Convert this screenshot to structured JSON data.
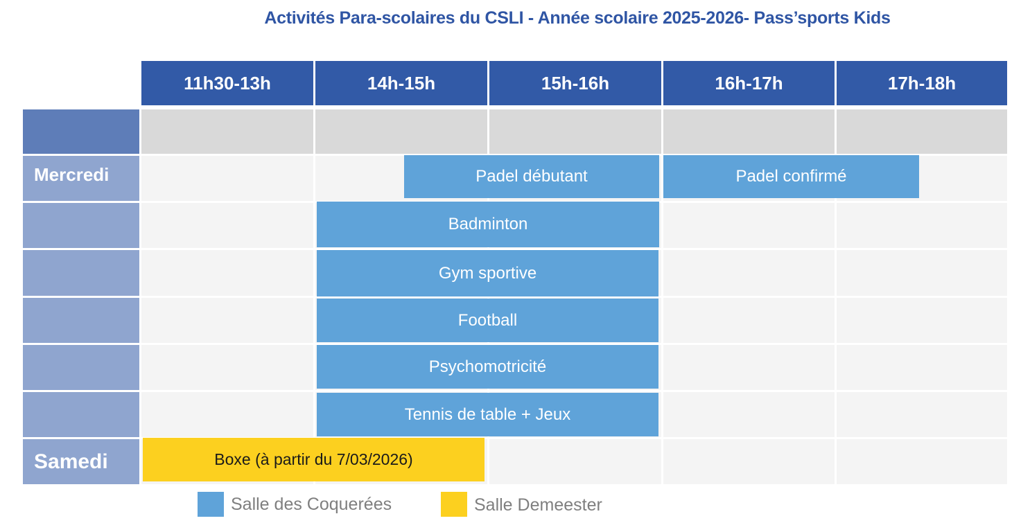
{
  "title": "Activités Para-scolaires du CSLI - Année scolaire 2025-2026- Pass’sports Kids",
  "time_slots": [
    "11h30-13h",
    "14h-15h",
    "15h-16h",
    "16h-17h",
    "17h-18h"
  ],
  "days": {
    "wednesday": "Mercredi",
    "saturday": "Samedi"
  },
  "activities": [
    {
      "label": "Padel débutant",
      "day": "Mercredi",
      "venue": "Salle des Coquerées"
    },
    {
      "label": "Padel confirmé",
      "day": "Mercredi",
      "venue": "Salle des Coquerées"
    },
    {
      "label": "Badminton",
      "day": "Mercredi",
      "venue": "Salle des Coquerées"
    },
    {
      "label": "Gym sportive",
      "day": "Mercredi",
      "venue": "Salle des Coquerées"
    },
    {
      "label": "Football",
      "day": "Mercredi",
      "venue": "Salle des Coquerées"
    },
    {
      "label": "Psychomotricité",
      "day": "Mercredi",
      "venue": "Salle des Coquerées"
    },
    {
      "label": "Tennis de table + Jeux",
      "day": "Mercredi",
      "venue": "Salle des Coquerées"
    },
    {
      "label": "Boxe (à partir du 7/03/2026)",
      "day": "Samedi",
      "venue": "Salle Demeester"
    }
  ],
  "legend": [
    {
      "label": "Salle des Coquerées",
      "color": "#5fa3d9"
    },
    {
      "label": "Salle Demeester",
      "color": "#fcd01f"
    }
  ],
  "colors": {
    "header": "#325aa7",
    "title": "#2f55a4",
    "day_column": "#8fa5cf",
    "blue_activity": "#5fa3d9",
    "yellow_activity": "#fcd01f"
  }
}
